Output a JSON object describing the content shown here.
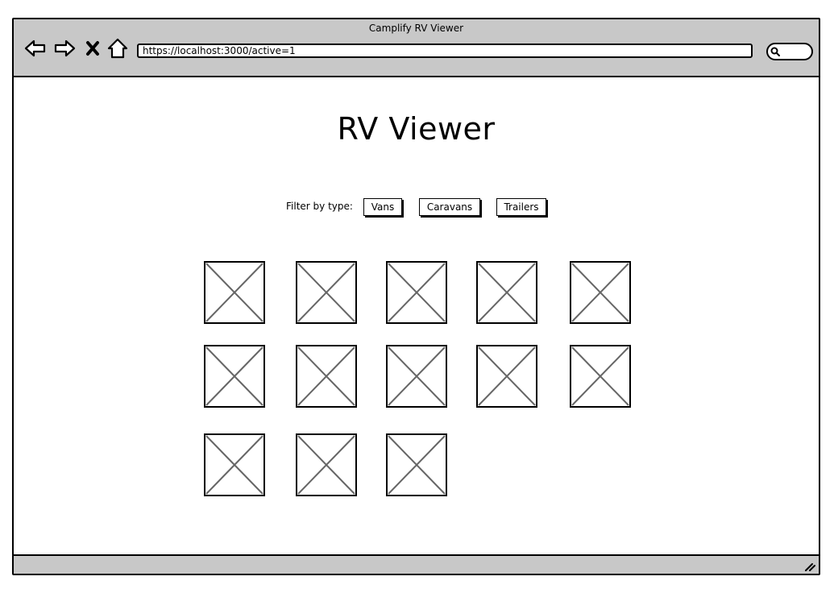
{
  "window": {
    "title": "Camplify RV Viewer"
  },
  "toolbar": {
    "back_icon": "back-arrow-icon",
    "forward_icon": "forward-arrow-icon",
    "stop_icon": "stop-x-icon",
    "home_icon": "home-icon",
    "url": "https://localhost:3000/active=1",
    "search_icon": "search-icon"
  },
  "page": {
    "title": "RV Viewer",
    "filter": {
      "label": "Filter by type:",
      "options": [
        "Vans",
        "Caravans",
        "Trailers"
      ]
    },
    "image_placeholder_count": 13
  },
  "colors": {
    "chrome": "#c8c8c8",
    "placeholder_stroke": "#666666"
  }
}
